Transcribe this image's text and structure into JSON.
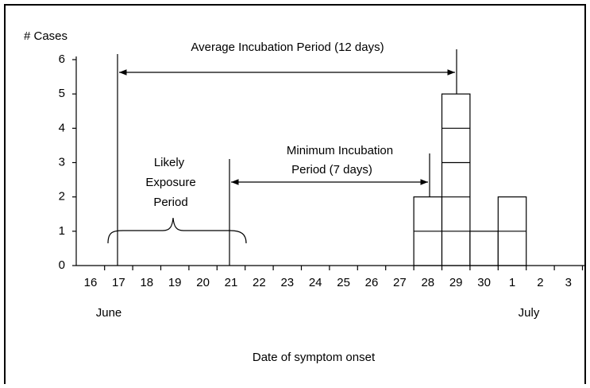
{
  "chart_data": {
    "type": "bar",
    "y_label": "# Cases",
    "x_label": "Date of symptom onset",
    "categories": [
      "16",
      "17",
      "18",
      "19",
      "20",
      "21",
      "22",
      "23",
      "24",
      "25",
      "26",
      "27",
      "28",
      "29",
      "30",
      "1",
      "2",
      "3"
    ],
    "values": [
      0,
      0,
      0,
      0,
      0,
      0,
      0,
      0,
      0,
      0,
      0,
      0,
      2,
      5,
      1,
      2,
      0,
      0
    ],
    "color": "#ffffff",
    "months": [
      "June",
      "July"
    ],
    "ylim": [
      0,
      6
    ],
    "yticks": [
      0,
      1,
      2,
      3,
      4,
      5,
      6
    ],
    "annotations": {
      "average": "Average Incubation Period (12 days)",
      "minimum": [
        "Minimum Incubation",
        "Period (7 days)"
      ],
      "exposure": [
        "Likely",
        "Exposure",
        "Period"
      ]
    }
  }
}
